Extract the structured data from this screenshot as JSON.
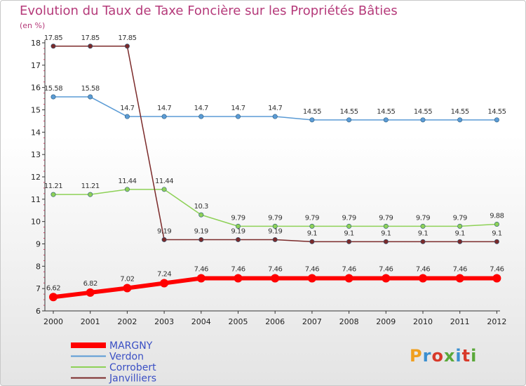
{
  "header": {
    "title": "Evolution du Taux de Taxe Foncière sur les Propriétés Bâties",
    "unit": "(en %)"
  },
  "logo": {
    "text": "Proxiti",
    "colors": [
      "#f0a020",
      "#3b8fd0",
      "#d83a2a",
      "#5aa83a",
      "#3b8fd0",
      "#d83a2a",
      "#5aa83a"
    ]
  },
  "chart_data": {
    "type": "line",
    "title": "Evolution du Taux de Taxe Foncière sur les Propriétés Bâties",
    "ylabel": "(en %)",
    "xlabel": "",
    "ylim": [
      6,
      18
    ],
    "yticks": [
      6,
      7,
      8,
      9,
      10,
      11,
      12,
      13,
      14,
      15,
      16,
      17,
      18
    ],
    "categories": [
      "2000",
      "2001",
      "2002",
      "2003",
      "2004",
      "2005",
      "2006",
      "2007",
      "2008",
      "2009",
      "2010",
      "2011",
      "2012"
    ],
    "grid": false,
    "legend": "bottom-left",
    "series": [
      {
        "name": "MARGNY",
        "color": "#ff0000",
        "style": "thick",
        "values": [
          6.62,
          6.82,
          7.02,
          7.24,
          7.46,
          7.46,
          7.46,
          7.46,
          7.46,
          7.46,
          7.46,
          7.46,
          7.46
        ],
        "labels": [
          "6.62",
          "6.82",
          "7.02",
          "7.24",
          "7.46",
          "7.46",
          "7.46",
          "7.46",
          "7.46",
          "7.46",
          "7.46",
          "7.46",
          "7.46"
        ]
      },
      {
        "name": "Verdon",
        "color": "#5b9bd5",
        "style": "thin",
        "values": [
          15.58,
          15.58,
          14.7,
          14.7,
          14.7,
          14.7,
          14.7,
          14.55,
          14.55,
          14.55,
          14.55,
          14.55,
          14.55
        ],
        "labels": [
          "15.58",
          "15.58",
          "14.7",
          "14.7",
          "14.7",
          "14.7",
          "14.7",
          "14.55",
          "14.55",
          "14.55",
          "14.55",
          "14.55",
          "14.55"
        ]
      },
      {
        "name": "Corrobert",
        "color": "#8ed157",
        "style": "thin",
        "values": [
          11.21,
          11.21,
          11.44,
          11.44,
          10.3,
          9.79,
          9.79,
          9.79,
          9.79,
          9.79,
          9.79,
          9.79,
          9.88
        ],
        "labels": [
          "11.21",
          "11.21",
          "11.44",
          "11.44",
          "10.3",
          "9.79",
          "9.79",
          "9.79",
          "9.79",
          "9.79",
          "9.79",
          "9.79",
          "9.88"
        ]
      },
      {
        "name": "Janvilliers",
        "color": "#7b2a2a",
        "style": "thin",
        "values": [
          17.85,
          17.85,
          17.85,
          9.19,
          9.19,
          9.19,
          9.19,
          9.1,
          9.1,
          9.1,
          9.1,
          9.1,
          9.1
        ],
        "labels": [
          "17.85",
          "17.85",
          "17.85",
          "9.19",
          "9.19",
          "9.19",
          "9.19",
          "9.1",
          "9.1",
          "9.1",
          "9.1",
          "9.1",
          "9.1"
        ]
      }
    ]
  }
}
